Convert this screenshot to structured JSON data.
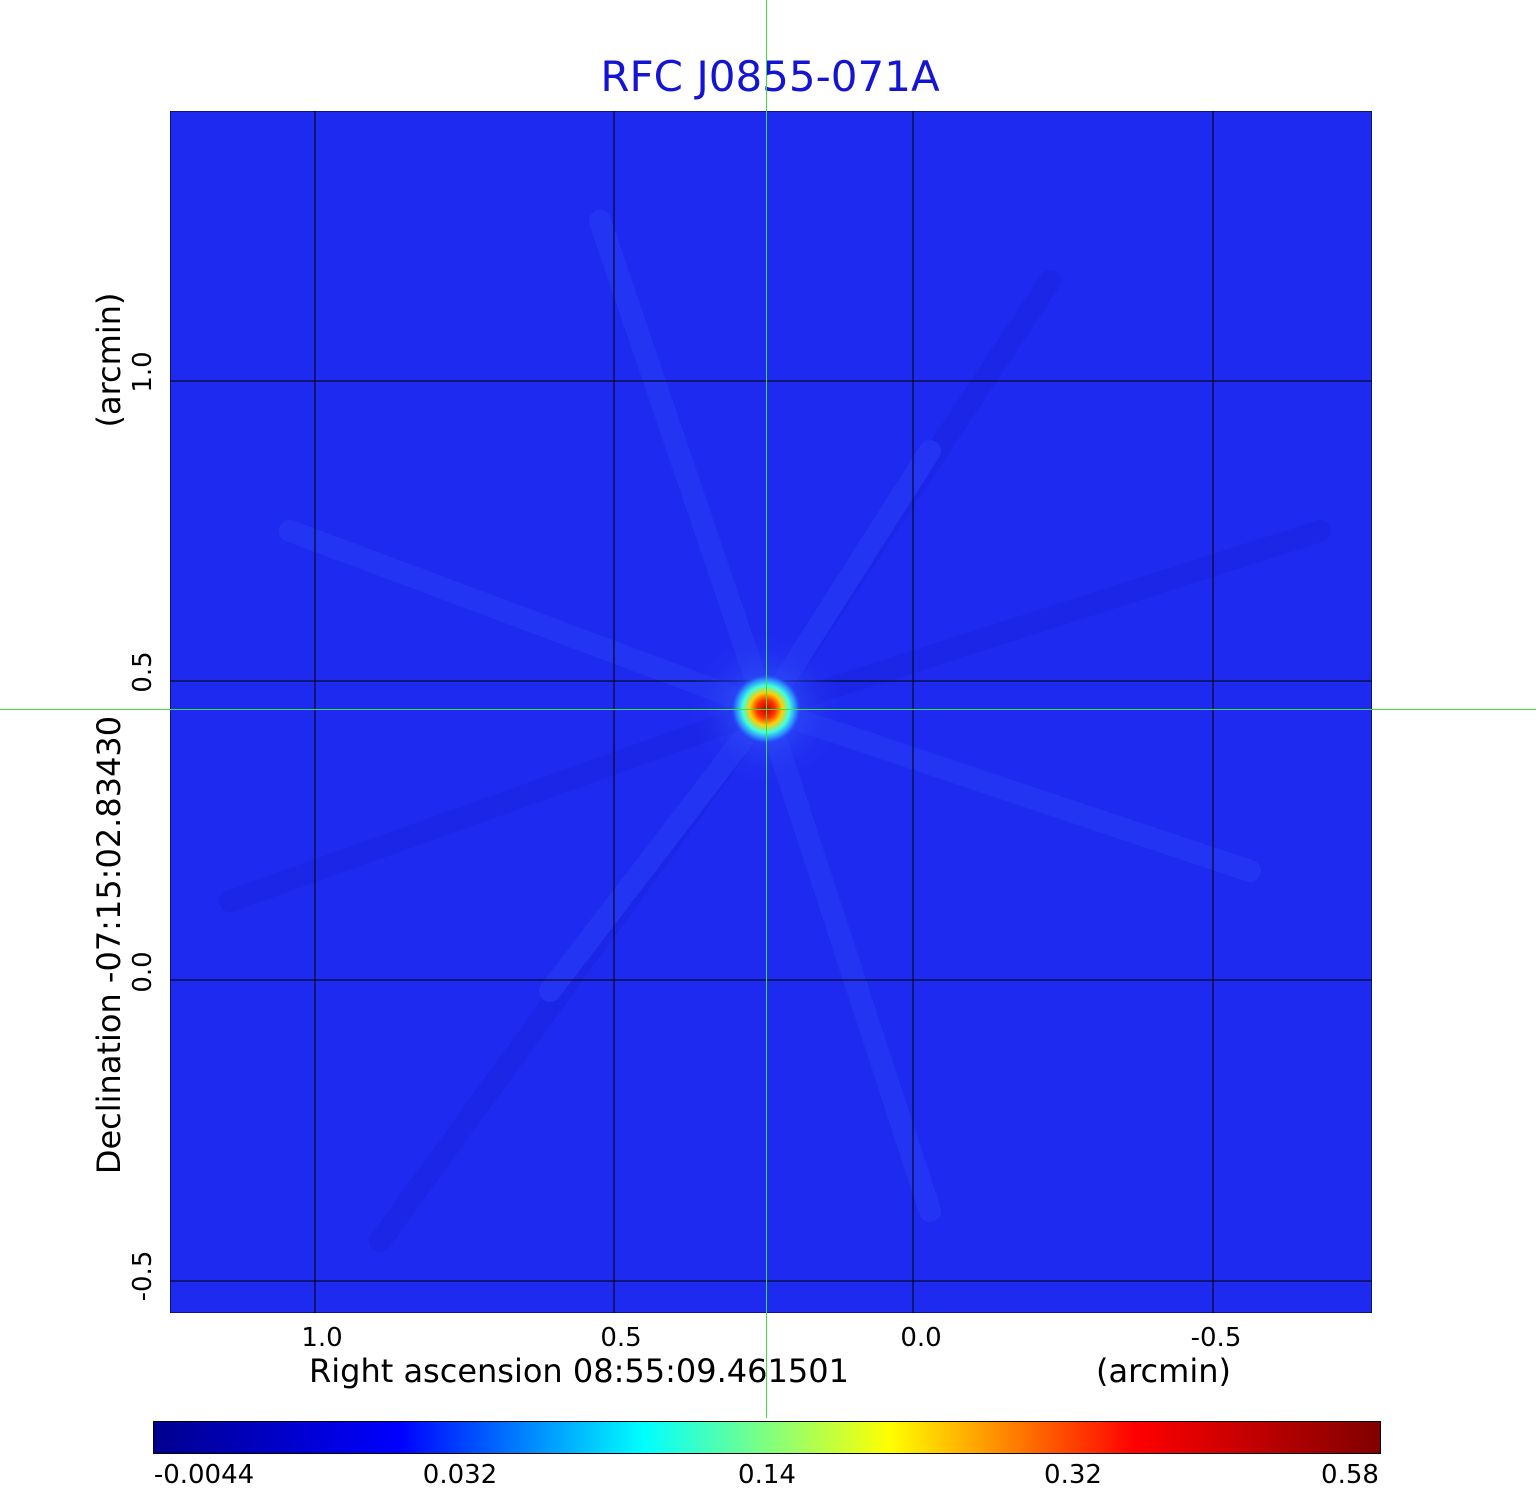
{
  "title": "RFC J0855-071A",
  "x_axis": {
    "label": "Right ascension  08:55:09.461501",
    "unit": "(arcmin)",
    "ticks": [
      "1.0",
      "0.5",
      "0.0",
      "-0.5"
    ]
  },
  "y_axis": {
    "label": "Declination  -07:15:02.83430",
    "unit": "(arcmin)",
    "ticks": [
      "1.0",
      "0.5",
      "0.0",
      "-0.5"
    ]
  },
  "colorbar": {
    "ticks": [
      "-0.0044",
      "0.032",
      "0.14",
      "0.32",
      "0.58"
    ],
    "colormap": [
      "#00008f",
      "#0000ff",
      "#00ffff",
      "#ffff00",
      "#ff0000",
      "#800000"
    ]
  },
  "colors": {
    "title": "#1414d2",
    "background_map": "#1f2af0",
    "grid": "#000000",
    "crosshair": "#3ee040"
  }
}
